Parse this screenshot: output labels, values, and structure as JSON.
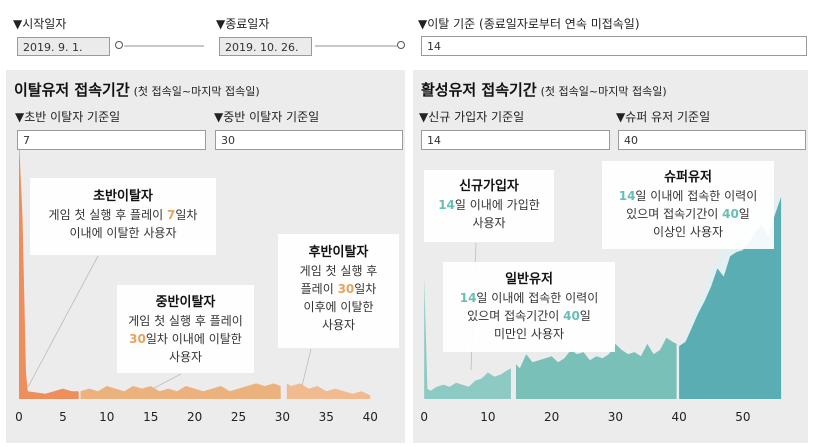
{
  "controls": {
    "start": {
      "label": "▼시작일자",
      "value": "2019. 9. 1."
    },
    "end": {
      "label": "▼종료일자",
      "value": "2019. 10. 26."
    },
    "churn": {
      "label": "▼이탈 기준 (종료일자로부터 연속 미접속일)",
      "value": "14"
    }
  },
  "left_panel": {
    "title": "이탈유저 접속기간",
    "subtitle": "(첫 접속일~마지막 접속일)",
    "field1": {
      "label": "▼초반 이탈자 기준일",
      "value": "7"
    },
    "field2": {
      "label": "▼중반 이탈자 기준일",
      "value": "30"
    },
    "callouts": [
      {
        "title": "초반이탈자",
        "line1_pre": "게임 첫 실행 후 플레이 ",
        "line1_num": "7",
        "line1_post": "일차",
        "line2": "이내에 이탈한 사용자"
      },
      {
        "title": "중반이탈자",
        "line1": "게임 첫 실행 후 플레이",
        "line2_num": "30",
        "line2_post": "일차 이내에 이탈한",
        "line3": "사용자"
      },
      {
        "title": "후반이탈자",
        "line1": "게임 첫 실행 후",
        "line2_pre": "플레이 ",
        "line2_num": "30",
        "line2_post": "일차",
        "line3": "이후에 이탈한",
        "line4": "사용자"
      }
    ]
  },
  "right_panel": {
    "title": "활성유저 접속기간",
    "subtitle": "(첫 접속일~마지막 접속일)",
    "field1": {
      "label": "▼신규 가입자 기준일",
      "value": "14"
    },
    "field2": {
      "label": "▼슈퍼 유저 기준일",
      "value": "40"
    },
    "callouts": [
      {
        "title": "신규가입자",
        "line1_num": "14",
        "line1_post": "일 이내에 가입한",
        "line2": "사용자"
      },
      {
        "title": "일반유저",
        "line1_num": "14",
        "line1_post": "일 이내에 접속한 이력이",
        "line2_pre": "있으며 접속기간이 ",
        "line2_num": "40",
        "line2_post": "일",
        "line3": "미만인 사용자"
      },
      {
        "title": "슈퍼유저",
        "line1_num": "14",
        "line1_post": "일 이내에 접속한 이력이",
        "line2_pre": "있으며 접속기간이 ",
        "line2_num": "40",
        "line2_post": "일",
        "line3": "이상인 사용자"
      }
    ]
  },
  "chart_data": [
    {
      "type": "area",
      "xlim": [
        0,
        41
      ],
      "ylim": [
        0,
        100
      ],
      "xticks": [
        0,
        5,
        10,
        15,
        20,
        25,
        30,
        35,
        40
      ],
      "series": [
        {
          "segment": "early",
          "color": "#ec8f5c",
          "points": [
            [
              0,
              100
            ],
            [
              0.4,
              70
            ],
            [
              0.8,
              10
            ],
            [
              1,
              3
            ],
            [
              2,
              2.5
            ],
            [
              3,
              2
            ],
            [
              4,
              3
            ],
            [
              5,
              4
            ],
            [
              6,
              3
            ],
            [
              6.8,
              3
            ]
          ]
        },
        {
          "segment": "mid",
          "color": "#ebb27e",
          "points": [
            [
              7,
              3
            ],
            [
              8,
              4
            ],
            [
              9,
              3
            ],
            [
              10,
              5
            ],
            [
              11,
              4
            ],
            [
              12,
              3
            ],
            [
              13,
              5
            ],
            [
              14,
              4
            ],
            [
              15,
              5
            ],
            [
              16,
              3
            ],
            [
              17,
              4
            ],
            [
              18,
              3
            ],
            [
              19,
              5
            ],
            [
              20,
              4
            ],
            [
              21,
              3
            ],
            [
              22,
              4
            ],
            [
              23,
              5
            ],
            [
              24,
              3
            ],
            [
              25,
              4
            ],
            [
              26,
              5
            ],
            [
              27,
              6
            ],
            [
              28,
              5
            ],
            [
              29,
              6
            ],
            [
              29.8,
              5
            ]
          ]
        },
        {
          "segment": "late",
          "color": "#f1bb91",
          "points": [
            [
              30.5,
              6
            ],
            [
              31,
              5
            ],
            [
              32,
              6
            ],
            [
              33,
              4
            ],
            [
              34,
              5
            ],
            [
              35,
              3
            ],
            [
              36,
              4
            ],
            [
              37,
              3
            ],
            [
              38,
              2
            ],
            [
              39,
              3
            ],
            [
              40,
              1.5
            ]
          ]
        }
      ]
    },
    {
      "type": "area",
      "xlim": [
        -0.5,
        56.3
      ],
      "ylim": [
        0,
        100
      ],
      "xticks": [
        0,
        10,
        20,
        30,
        40,
        50
      ],
      "series": [
        {
          "segment": "new",
          "color": "#8ccac3",
          "points": [
            [
              0,
              60
            ],
            [
              0.5,
              5
            ],
            [
              1,
              4
            ],
            [
              2,
              6
            ],
            [
              3,
              7
            ],
            [
              4,
              6
            ],
            [
              5,
              8
            ],
            [
              6,
              7
            ],
            [
              7,
              6
            ],
            [
              8,
              9
            ],
            [
              9,
              10
            ],
            [
              10,
              13
            ],
            [
              11,
              11
            ],
            [
              12,
              12
            ],
            [
              13,
              14
            ],
            [
              13.6,
              15
            ]
          ]
        },
        {
          "segment": "normal",
          "color": "#79c0b9",
          "points": [
            [
              14.4,
              17
            ],
            [
              15,
              15
            ],
            [
              16,
              22
            ],
            [
              17,
              18
            ],
            [
              18,
              19
            ],
            [
              19,
              20
            ],
            [
              20,
              21
            ],
            [
              21,
              18
            ],
            [
              22,
              20
            ],
            [
              23,
              24
            ],
            [
              24,
              22
            ],
            [
              25,
              23
            ],
            [
              26,
              19
            ],
            [
              27,
              21
            ],
            [
              28,
              20
            ],
            [
              29,
              22
            ],
            [
              30,
              27
            ],
            [
              31,
              24
            ],
            [
              32,
              22
            ],
            [
              33,
              23
            ],
            [
              34,
              21
            ],
            [
              35,
              27
            ],
            [
              36,
              22
            ],
            [
              37,
              24
            ],
            [
              38,
              30
            ],
            [
              39,
              28
            ],
            [
              39.6,
              27
            ]
          ]
        },
        {
          "segment": "super",
          "color": "#5aaeb3",
          "points": [
            [
              40,
              26
            ],
            [
              41,
              28
            ],
            [
              42,
              35
            ],
            [
              43,
              42
            ],
            [
              44,
              48
            ],
            [
              45,
              55
            ],
            [
              46,
              64
            ],
            [
              47,
              60
            ],
            [
              48,
              70
            ],
            [
              49,
              72
            ],
            [
              50,
              73
            ],
            [
              51,
              77
            ],
            [
              52,
              82
            ],
            [
              53,
              85
            ],
            [
              54,
              80
            ],
            [
              55,
              90
            ],
            [
              56,
              99
            ]
          ]
        },
        {
          "segment": "super-faint",
          "color": "#e3eff0",
          "points": [
            [
              40,
              26
            ],
            [
              41,
              30
            ],
            [
              42,
              40
            ],
            [
              43,
              47
            ],
            [
              44,
              55
            ],
            [
              45,
              63
            ],
            [
              46,
              70
            ],
            [
              47,
              75
            ],
            [
              48,
              78
            ],
            [
              49,
              80
            ],
            [
              50,
              84
            ],
            [
              51,
              87
            ],
            [
              52,
              92
            ],
            [
              53,
              96
            ],
            [
              54,
              100
            ],
            [
              55,
              100
            ],
            [
              56,
              100
            ]
          ]
        }
      ]
    }
  ]
}
